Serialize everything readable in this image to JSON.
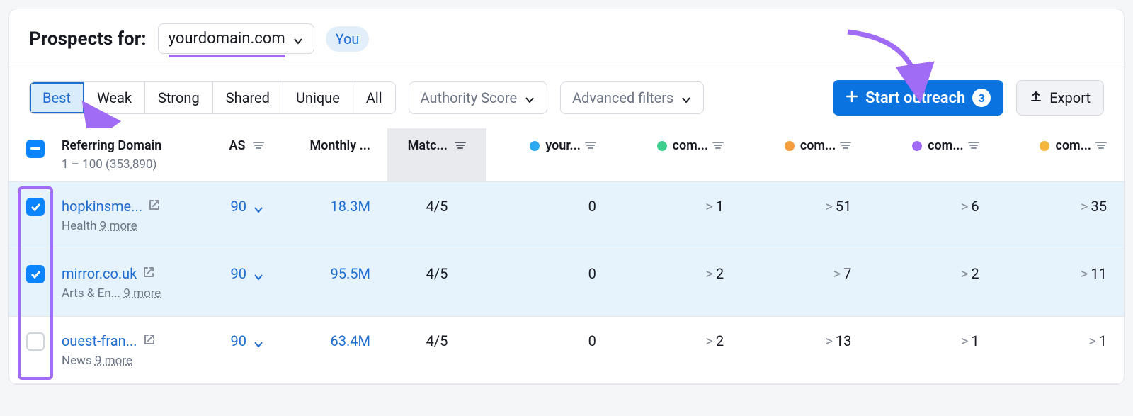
{
  "header": {
    "title": "Prospects for:",
    "domain": "yourdomain.com",
    "you_label": "You"
  },
  "filters": {
    "segments": [
      "Best",
      "Weak",
      "Strong",
      "Shared",
      "Unique",
      "All"
    ],
    "active_segment": 0,
    "authority_label": "Authority Score",
    "advanced_label": "Advanced filters",
    "outreach_label": "Start outreach",
    "outreach_count": "3",
    "export_label": "Export"
  },
  "columns": {
    "referring": "Referring Domain",
    "referring_sub": "1 – 100 (353,890)",
    "as": "AS",
    "monthly": "Monthly ...",
    "match": "Matc...",
    "comp_dots": [
      "#2aa8f2",
      "#3ecf8e",
      "#f59e3e",
      "#a16cf5",
      "#f5b63e"
    ],
    "comp_labels": [
      "your...",
      "com...",
      "com...",
      "com...",
      "com..."
    ]
  },
  "rows": [
    {
      "checked": true,
      "domain": "hopkinsme...",
      "category": "Health",
      "more": "9 more",
      "as": "90",
      "monthly": "18.3M",
      "match": "4/5",
      "vals": [
        "0",
        "1",
        "51",
        "6",
        "35"
      ]
    },
    {
      "checked": true,
      "domain": "mirror.co.uk",
      "category": "Arts & En...",
      "more": "9 more",
      "as": "90",
      "monthly": "95.5M",
      "match": "4/5",
      "vals": [
        "0",
        "2",
        "7",
        "2",
        "11"
      ]
    },
    {
      "checked": false,
      "domain": "ouest-fran...",
      "category": "News",
      "more": "9 more",
      "as": "90",
      "monthly": "63.4M",
      "match": "4/5",
      "vals": [
        "0",
        "2",
        "13",
        "1",
        "1"
      ]
    }
  ],
  "annotation_color": "#a16cf5"
}
